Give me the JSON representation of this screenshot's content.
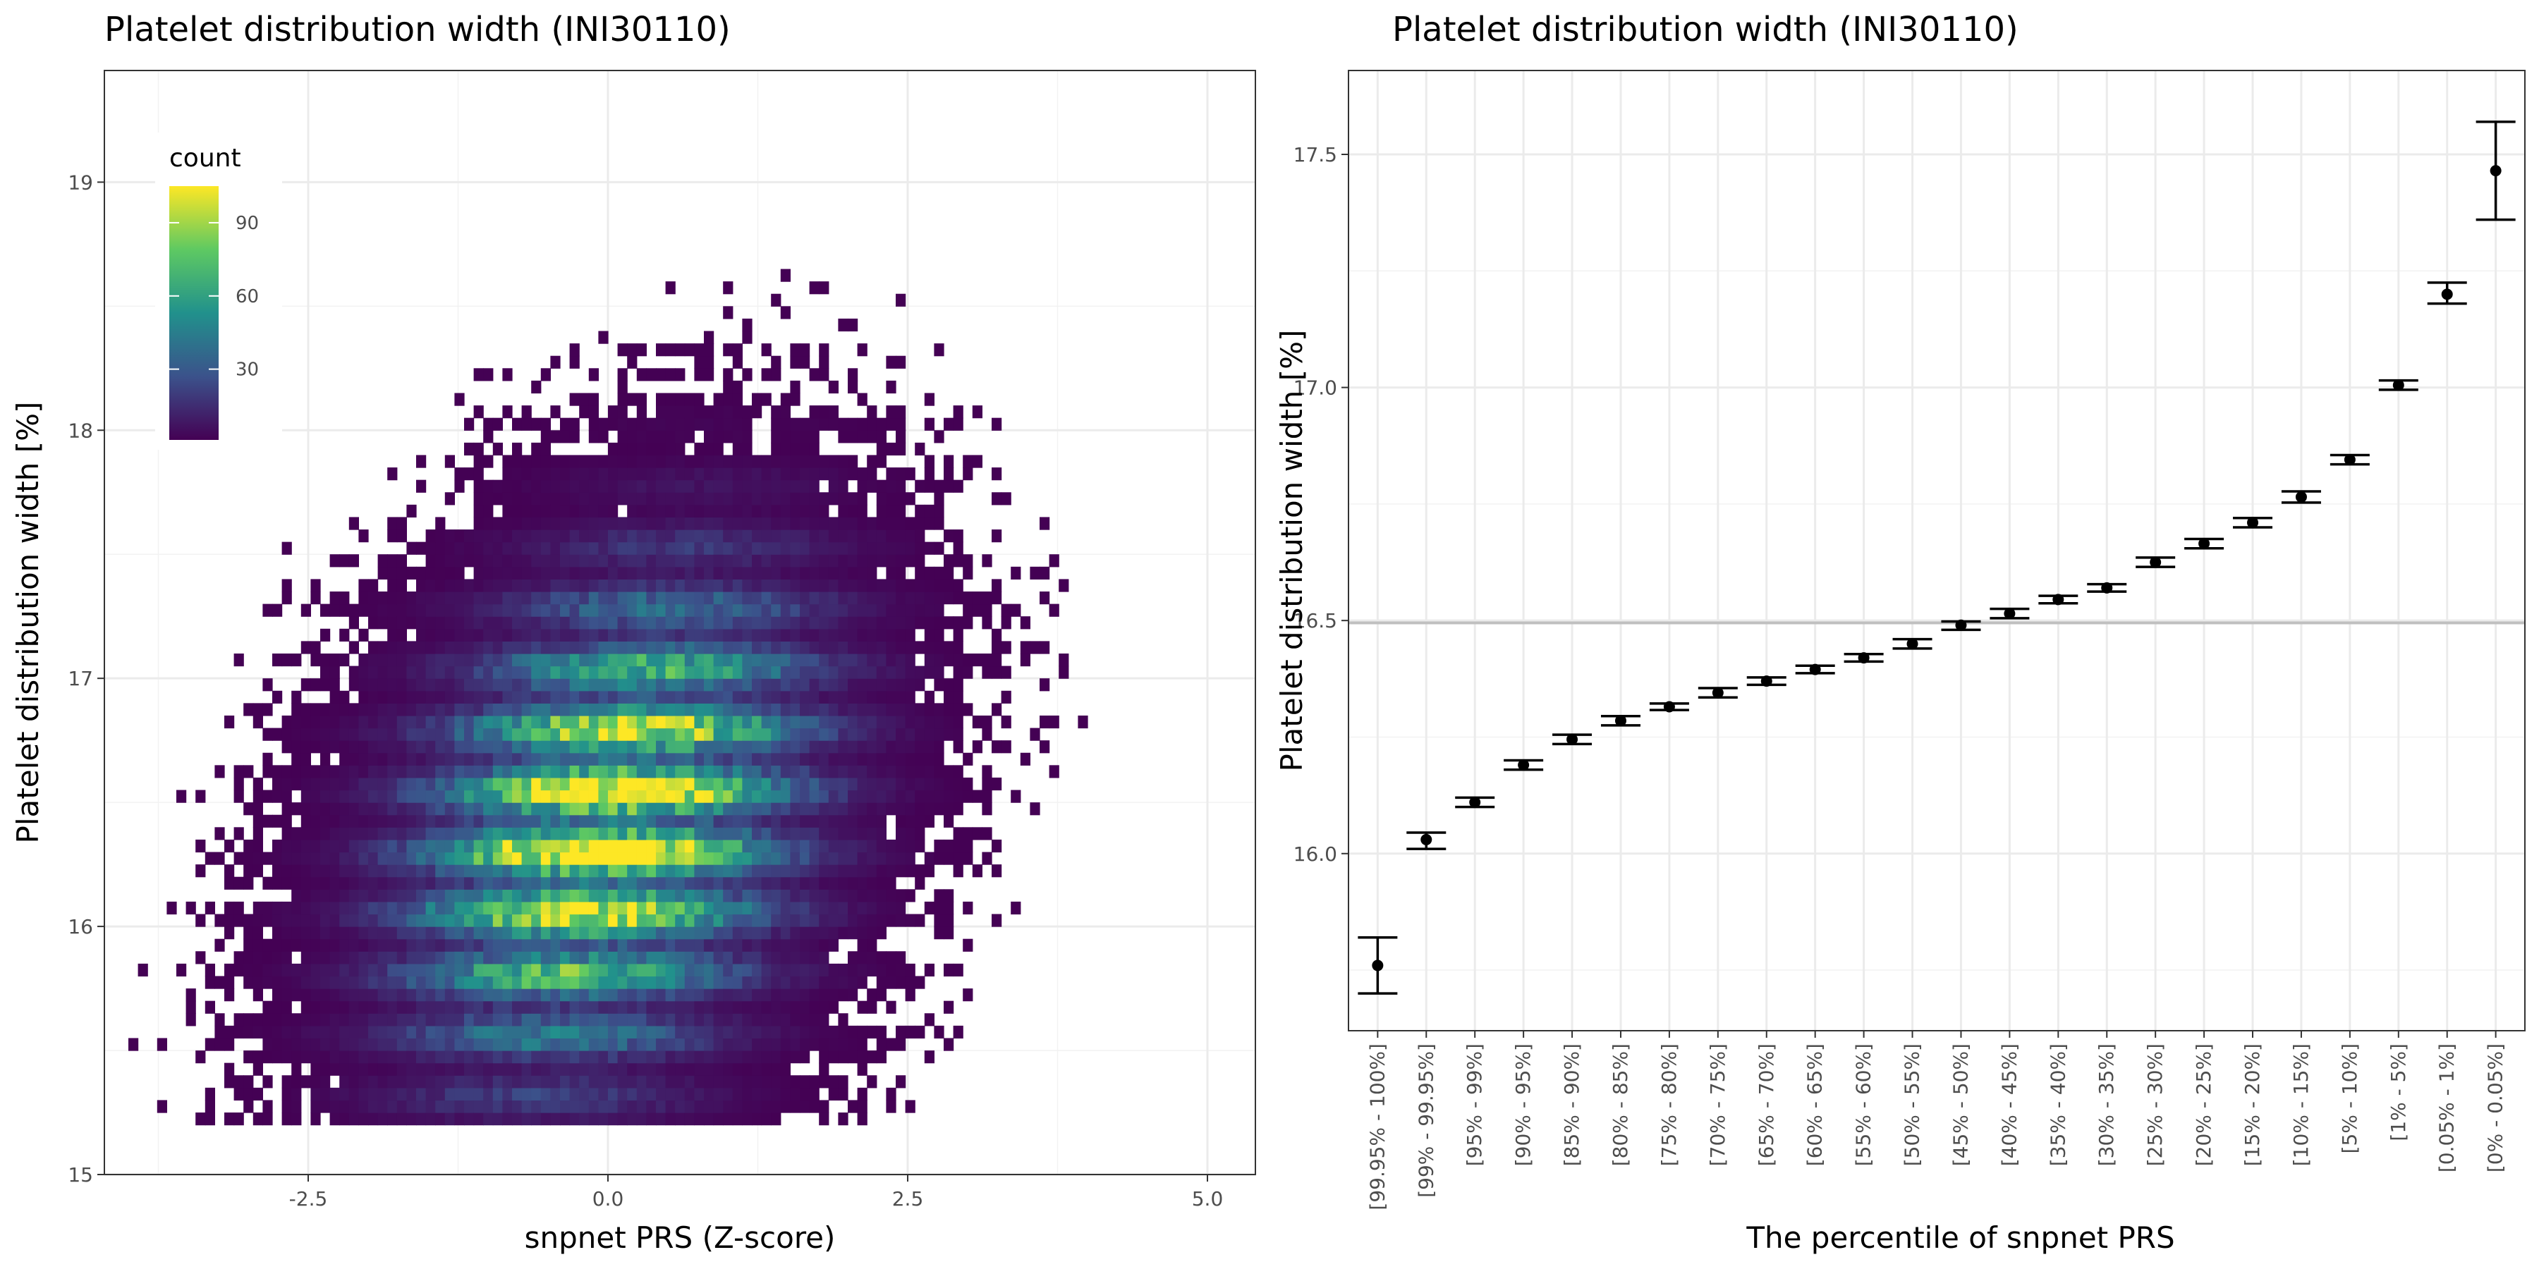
{
  "chart_data": [
    {
      "type": "heatmap",
      "title": "Platelet distribution width (INI30110)",
      "xlabel": "snpnet PRS (Z-score)",
      "ylabel": "Platelet distribution width [%]",
      "xlim": [
        -4.2,
        5.4
      ],
      "ylim": [
        15.0,
        19.45
      ],
      "x_ticks": [
        -2.5,
        0.0,
        2.5,
        5.0
      ],
      "x_tick_labels": [
        "-2.5",
        "0.0",
        "2.5",
        "5.0"
      ],
      "y_ticks": [
        15,
        16,
        17,
        18,
        19
      ],
      "y_tick_labels": [
        "15",
        "16",
        "17",
        "18",
        "19"
      ],
      "bin_width_x": 0.08,
      "bin_width_y": 0.05,
      "count_peak": 105,
      "density_center": {
        "x": 0.0,
        "y": 16.4
      },
      "density_sd": {
        "x": 1.0,
        "y": 0.55
      },
      "colorscale": [
        "#440154",
        "#3b528b",
        "#21918c",
        "#5ec962",
        "#fde725"
      ],
      "legend": {
        "title": "count",
        "ticks": [
          30,
          60,
          90
        ],
        "tick_labels": [
          "30",
          "60",
          "90"
        ],
        "range": [
          1,
          105
        ],
        "position": "top-left"
      },
      "grid": true
    },
    {
      "type": "scatter",
      "title": "Platelet distribution width (INI30110)",
      "xlabel": "The percentile of snpnet PRS",
      "ylabel": "Platelet distribution width [%]",
      "ylim": [
        15.62,
        17.68
      ],
      "y_ticks": [
        16.0,
        16.5,
        17.0,
        17.5
      ],
      "y_tick_labels": [
        "16.0",
        "16.5",
        "17.0",
        "17.5"
      ],
      "reference_line": 16.495,
      "categories": [
        "[99.95% - 100%]",
        "[99% - 99.95%]",
        "[95% - 99%]",
        "[90% - 95%]",
        "[85% - 90%]",
        "[80% - 85%]",
        "[75% - 80%]",
        "[70% - 75%]",
        "[65% - 70%]",
        "[60% - 65%]",
        "[55% - 60%]",
        "[50% - 55%]",
        "[45% - 50%]",
        "[40% - 45%]",
        "[35% - 40%]",
        "[30% - 35%]",
        "[25% - 30%]",
        "[20% - 25%]",
        "[15% - 20%]",
        "[10% - 15%]",
        "[5% - 10%]",
        "[1% - 5%]",
        "[0.05% - 1%]",
        "[0% - 0.05%]"
      ],
      "values": [
        15.76,
        16.03,
        16.11,
        16.19,
        16.245,
        16.285,
        16.315,
        16.345,
        16.37,
        16.395,
        16.42,
        16.45,
        16.49,
        16.515,
        16.545,
        16.57,
        16.625,
        16.665,
        16.71,
        16.765,
        16.845,
        17.005,
        17.2,
        17.465
      ],
      "lower": [
        15.7,
        16.01,
        16.1,
        16.18,
        16.235,
        16.275,
        16.308,
        16.335,
        16.362,
        16.387,
        16.412,
        16.44,
        16.48,
        16.505,
        16.537,
        16.562,
        16.615,
        16.655,
        16.7,
        16.753,
        16.835,
        16.995,
        17.18,
        17.36
      ],
      "upper": [
        15.82,
        16.045,
        16.12,
        16.2,
        16.255,
        16.295,
        16.322,
        16.355,
        16.378,
        16.403,
        16.428,
        16.46,
        16.498,
        16.525,
        16.553,
        16.578,
        16.635,
        16.675,
        16.72,
        16.777,
        16.855,
        17.015,
        17.225,
        17.57
      ],
      "grid": true
    }
  ]
}
